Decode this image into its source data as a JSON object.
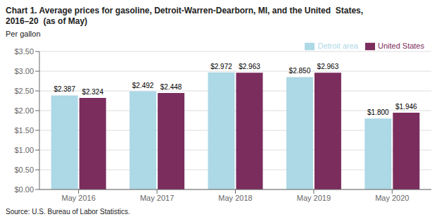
{
  "chart_data": {
    "type": "bar",
    "title": "Chart 1. Average prices for gasoline, Detroit-Warren-Dearborn, MI, and the United  States,",
    "subtitle": "2016–20  (as of May)",
    "ylabel": "Per gallon",
    "source": "Source: U.S. Bureau of Labor Statistics.",
    "categories": [
      "May 2016",
      "May 2017",
      "May 2018",
      "May 2019",
      "May 2020"
    ],
    "series": [
      {
        "name": "Detroit area",
        "color": "#ADD8E6",
        "values": [
          2.387,
          2.492,
          2.972,
          2.85,
          1.8
        ],
        "value_labels": [
          "$2.387",
          "$2.492",
          "$2.972",
          "$2.850",
          "$1.800"
        ]
      },
      {
        "name": "United States",
        "color": "#7B2D5E",
        "values": [
          2.324,
          2.448,
          2.963,
          2.963,
          1.946
        ],
        "value_labels": [
          "$2.324",
          "$2.448",
          "$2.963",
          "$2.963",
          "$1.946"
        ]
      }
    ],
    "ylim": [
      0,
      3.5
    ],
    "yticks": [
      {
        "value": 0.0,
        "label": "$0.00"
      },
      {
        "value": 0.5,
        "label": "$0.50"
      },
      {
        "value": 1.0,
        "label": "$1.00"
      },
      {
        "value": 1.5,
        "label": "$1.50"
      },
      {
        "value": 2.0,
        "label": "$2.00"
      },
      {
        "value": 2.5,
        "label": "$2.50"
      },
      {
        "value": 3.0,
        "label": "$3.00"
      },
      {
        "value": 3.5,
        "label": "$3.50"
      }
    ],
    "grid": true,
    "legend": "upper right",
    "data_labels": true
  }
}
